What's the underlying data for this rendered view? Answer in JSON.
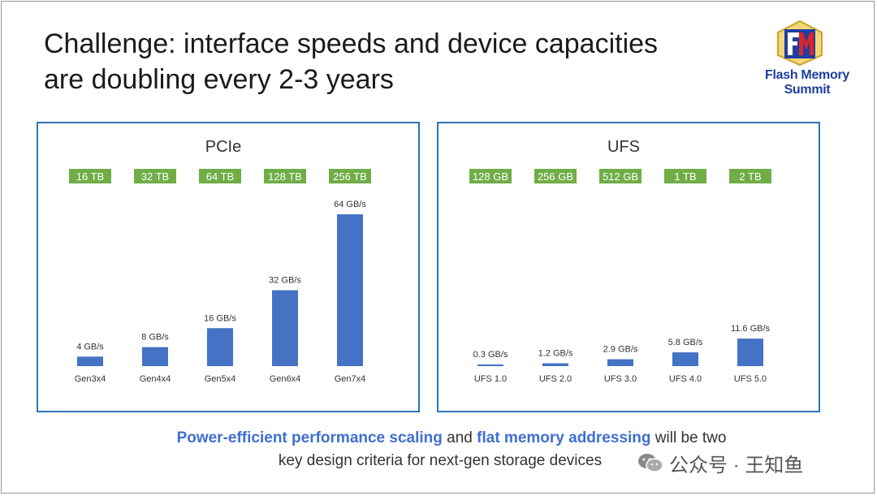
{
  "slide": {
    "title_line1": "Challenge: interface speeds and device capacities",
    "title_line2": "are doubling every 2-3 years",
    "logo_text": "Flash Memory Summit",
    "footer": {
      "highlight1": "Power-efficient performance scaling",
      "text1": " and ",
      "highlight2": "flat memory addressing",
      "text2": " will be two",
      "line2": "key design criteria for next-gen storage devices"
    },
    "watermark": "公众号 · 王知鱼"
  },
  "colors": {
    "bar": "#4472c4",
    "capacity_badge": "#70ad47",
    "panel_border": "#2e74b5",
    "highlight_text": "#3f6fcf"
  },
  "chart_data": [
    {
      "type": "bar",
      "title": "PCIe",
      "categories": [
        "Gen3x4",
        "Gen4x4",
        "Gen5x4",
        "Gen6x4",
        "Gen7x4"
      ],
      "capacities": [
        "16 TB",
        "32 TB",
        "64 TB",
        "128 TB",
        "256 TB"
      ],
      "values": [
        4,
        8,
        16,
        32,
        64
      ],
      "value_labels": [
        "4 GB/s",
        "8 GB/s",
        "16 GB/s",
        "32 GB/s",
        "64 GB/s"
      ],
      "ylim": [
        0,
        64
      ],
      "grid": false
    },
    {
      "type": "bar",
      "title": "UFS",
      "categories": [
        "UFS 1.0",
        "UFS 2.0",
        "UFS 3.0",
        "UFS 4.0",
        "UFS 5.0"
      ],
      "capacities": [
        "128 GB",
        "256 GB",
        "512 GB",
        "1 TB",
        "2 TB"
      ],
      "values": [
        0.3,
        1.2,
        2.9,
        5.8,
        11.6
      ],
      "value_labels": [
        "0.3 GB/s",
        "1.2 GB/s",
        "2.9 GB/s",
        "5.8 GB/s",
        "11.6 GB/s"
      ],
      "ylim": [
        0,
        64
      ],
      "grid": false
    }
  ]
}
